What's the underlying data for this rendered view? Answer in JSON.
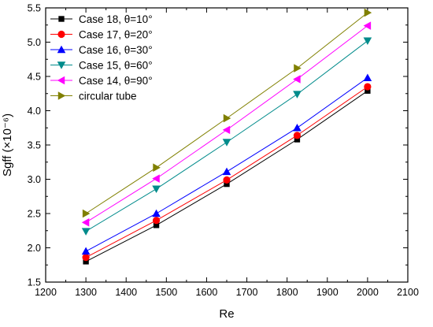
{
  "chart_data": {
    "type": "line",
    "xlabel": "Re",
    "ylabel": "Sgff (×10⁻⁶)",
    "xlim": [
      1200,
      2100
    ],
    "ylim": [
      1.5,
      5.5
    ],
    "xticks": [
      "1200",
      "1300",
      "1400",
      "1500",
      "1600",
      "1700",
      "1800",
      "1900",
      "2000",
      "2100"
    ],
    "yticks": [
      "1.5",
      "2.0",
      "2.5",
      "3.0",
      "3.5",
      "4.0",
      "4.5",
      "5.0",
      "5.5"
    ],
    "grid": false,
    "legend_position": "top-left",
    "x": [
      1300,
      1475,
      1650,
      1825,
      2000
    ],
    "series": [
      {
        "name": "Case 18, θ=10°",
        "marker": "square",
        "color": "#000000",
        "values": [
          1.8,
          2.33,
          2.93,
          3.58,
          4.29
        ]
      },
      {
        "name": "Case 17, θ=20°",
        "marker": "circle",
        "color": "#ff0000",
        "values": [
          1.86,
          2.4,
          2.99,
          3.64,
          4.35
        ]
      },
      {
        "name": "Case 16, θ=30°",
        "marker": "triangle-up",
        "color": "#0000ff",
        "values": [
          1.95,
          2.5,
          3.11,
          3.75,
          4.48
        ]
      },
      {
        "name": "Case 15, θ=60°",
        "marker": "triangle-down",
        "color": "#008b8b",
        "values": [
          2.24,
          2.86,
          3.54,
          4.24,
          5.02
        ]
      },
      {
        "name": "Case 14, θ=90°",
        "marker": "triangle-left",
        "color": "#ff00ff",
        "values": [
          2.37,
          3.01,
          3.72,
          4.46,
          5.24
        ]
      },
      {
        "name": "circular tube",
        "marker": "triangle-right",
        "color": "#808000",
        "values": [
          2.5,
          3.17,
          3.89,
          4.62,
          5.43
        ]
      }
    ]
  }
}
